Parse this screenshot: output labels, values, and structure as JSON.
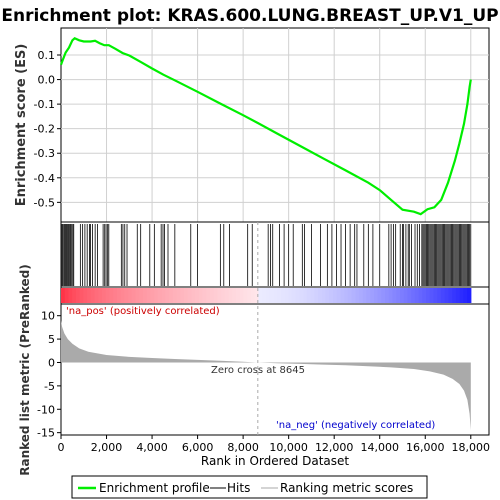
{
  "title": "Enrichment plot: KRAS.600.LUNG.BREAST_UP.V1_UP",
  "colors": {
    "enrichment": "#00ee00",
    "hits": "#000000",
    "metric_fill": "#aaaaaa",
    "pos_label": "#cc0000",
    "neg_label": "#0000cc",
    "zero_line": "#aaaaaa"
  },
  "legend": {
    "items": [
      {
        "label": "Enrichment profile",
        "icon": "green-line-icon"
      },
      {
        "label": "Hits",
        "icon": "black-line-icon"
      },
      {
        "label": "Ranking metric scores",
        "icon": "gray-line-icon"
      }
    ]
  },
  "chart_data": [
    {
      "type": "line",
      "name": "enrichment-profile",
      "ylabel": "Enrichment score (ES)",
      "ylim": [
        -0.58,
        0.21
      ],
      "yticks": [
        0.1,
        0.0,
        -0.1,
        -0.2,
        -0.3,
        -0.4,
        -0.5
      ],
      "ytick_labels": [
        "0.1",
        "0.0",
        "-0.1",
        "-0.2",
        "-0.3",
        "-0.4",
        "-0.5"
      ],
      "xlim": [
        0,
        18800
      ],
      "grid": true,
      "points": [
        [
          0,
          0.06
        ],
        [
          80,
          0.08
        ],
        [
          200,
          0.11
        ],
        [
          350,
          0.13
        ],
        [
          500,
          0.16
        ],
        [
          600,
          0.168
        ],
        [
          800,
          0.16
        ],
        [
          1000,
          0.155
        ],
        [
          1300,
          0.155
        ],
        [
          1500,
          0.158
        ],
        [
          1700,
          0.148
        ],
        [
          1900,
          0.14
        ],
        [
          2100,
          0.14
        ],
        [
          2400,
          0.125
        ],
        [
          2700,
          0.108
        ],
        [
          3000,
          0.098
        ],
        [
          3500,
          0.072
        ],
        [
          4000,
          0.045
        ],
        [
          4500,
          0.02
        ],
        [
          5000,
          -0.003
        ],
        [
          6000,
          -0.05
        ],
        [
          7000,
          -0.098
        ],
        [
          8000,
          -0.145
        ],
        [
          8645,
          -0.177
        ],
        [
          9500,
          -0.22
        ],
        [
          10500,
          -0.27
        ],
        [
          11500,
          -0.32
        ],
        [
          12500,
          -0.37
        ],
        [
          13500,
          -0.42
        ],
        [
          14000,
          -0.45
        ],
        [
          14500,
          -0.49
        ],
        [
          15000,
          -0.53
        ],
        [
          15500,
          -0.538
        ],
        [
          15800,
          -0.548
        ],
        [
          16100,
          -0.528
        ],
        [
          16400,
          -0.52
        ],
        [
          16700,
          -0.49
        ],
        [
          17000,
          -0.42
        ],
        [
          17300,
          -0.33
        ],
        [
          17500,
          -0.26
        ],
        [
          17700,
          -0.18
        ],
        [
          17850,
          -0.1
        ],
        [
          17950,
          -0.03
        ],
        [
          18000,
          0.0
        ]
      ]
    },
    {
      "type": "bar",
      "name": "hits",
      "xlim": [
        0,
        18800
      ],
      "hit_positions": [
        20,
        60,
        100,
        150,
        200,
        240,
        280,
        330,
        380,
        420,
        470,
        520,
        560,
        850,
        950,
        1050,
        1150,
        1250,
        1300,
        1380,
        1500,
        1600,
        1850,
        1920,
        1980,
        2050,
        2100,
        2650,
        2720,
        2800,
        2900,
        3350,
        3500,
        3900,
        4100,
        4400,
        4480,
        4550,
        4700,
        5000,
        5700,
        6000,
        7000,
        7150,
        7400,
        8200,
        8400,
        9100,
        9200,
        9300,
        9600,
        9800,
        10000,
        10200,
        10600,
        10700,
        11000,
        11400,
        11700,
        11900,
        12100,
        12300,
        12500,
        12700,
        12900,
        13000,
        13300,
        13500,
        13700,
        14000,
        14400,
        14500,
        14600,
        14700,
        14900,
        15000,
        15050,
        15150,
        15250,
        15300,
        15400,
        15550,
        15650,
        15750,
        15850,
        15900,
        15950,
        16000,
        16050,
        16100,
        16150,
        16200,
        16250,
        16300,
        16350,
        16400,
        16450,
        16500,
        16550,
        16600,
        16650,
        16700,
        16750,
        16800,
        16850,
        16900,
        16950,
        17000,
        17050,
        17100,
        17150,
        17200,
        17250,
        17300,
        17350,
        17400,
        17450,
        17500,
        17550,
        17600,
        17650,
        17700,
        17750,
        17800,
        17850,
        17900,
        17950,
        18000
      ]
    },
    {
      "type": "area",
      "name": "ranking-metric-scores",
      "ylabel": "Ranked list metric (PreRanked)",
      "xlabel": "Rank in Ordered Dataset",
      "ylim": [
        -15.5,
        12.5
      ],
      "yticks": [
        10,
        5,
        0,
        -5,
        -10,
        -15
      ],
      "ytick_labels": [
        "10",
        "5",
        "0",
        "-5",
        "-10",
        "-15"
      ],
      "xlim": [
        0,
        18800
      ],
      "xticks": [
        0,
        2000,
        4000,
        6000,
        8000,
        10000,
        12000,
        14000,
        16000,
        18000
      ],
      "xtick_labels": [
        "0",
        "2,000",
        "4,000",
        "6,000",
        "8,000",
        "10,000",
        "12,000",
        "14,000",
        "16,000",
        "18,000"
      ],
      "zero_cross": 8645,
      "zero_cross_label": "Zero cross at 8645",
      "pos_label": "'na_pos' (positively correlated)",
      "neg_label": "'na_neg' (negatively correlated)",
      "points": [
        [
          0,
          9.0
        ],
        [
          50,
          7.6
        ],
        [
          150,
          6.2
        ],
        [
          300,
          5.0
        ],
        [
          500,
          4.0
        ],
        [
          800,
          3.0
        ],
        [
          1200,
          2.3
        ],
        [
          2000,
          1.6
        ],
        [
          3000,
          1.2
        ],
        [
          4000,
          0.95
        ],
        [
          5000,
          0.75
        ],
        [
          6000,
          0.55
        ],
        [
          7000,
          0.35
        ],
        [
          8000,
          0.15
        ],
        [
          8645,
          0.0
        ],
        [
          9500,
          -0.15
        ],
        [
          10500,
          -0.3
        ],
        [
          11500,
          -0.45
        ],
        [
          12500,
          -0.6
        ],
        [
          13500,
          -0.8
        ],
        [
          14500,
          -1.05
        ],
        [
          15500,
          -1.4
        ],
        [
          16200,
          -1.9
        ],
        [
          16800,
          -2.6
        ],
        [
          17200,
          -3.5
        ],
        [
          17500,
          -4.6
        ],
        [
          17700,
          -6.0
        ],
        [
          17850,
          -8.0
        ],
        [
          17950,
          -11.0
        ],
        [
          18000,
          -14.5
        ]
      ]
    }
  ]
}
